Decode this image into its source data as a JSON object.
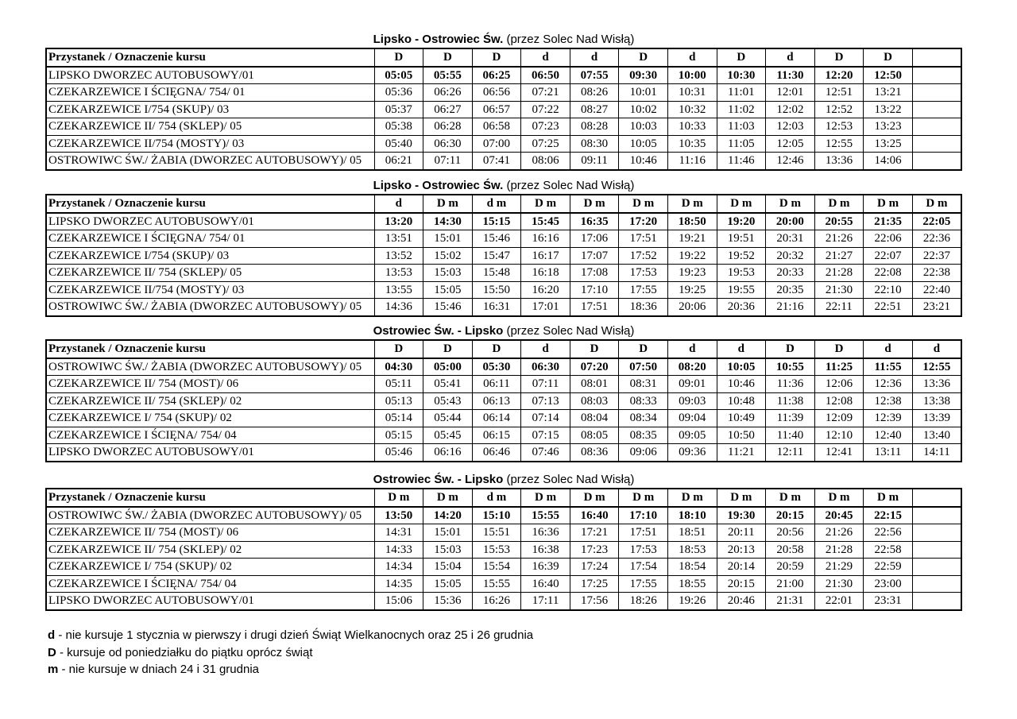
{
  "tables": [
    {
      "title": "Lipsko - Ostrowiec Św.",
      "subtitle": "(przez Solec Nad Wisłą)",
      "header_label": "Przystanek /  Oznaczenie kursu",
      "courses": [
        "D",
        "D",
        "D",
        "d",
        "d",
        "D",
        "d",
        "D",
        "d",
        "D",
        "D"
      ],
      "rows": [
        {
          "stop": "LIPSKO DWORZEC AUTOBUSOWY/01",
          "times": [
            "05:05",
            "05:55",
            "06:25",
            "06:50",
            "07:55",
            "09:30",
            "10:00",
            "10:30",
            "11:30",
            "12:20",
            "12:50"
          ]
        },
        {
          "stop": "CZEKARZEWICE I ŚCIĘGNA/ 754/ 01",
          "times": [
            "05:36",
            "06:26",
            "06:56",
            "07:21",
            "08:26",
            "10:01",
            "10:31",
            "11:01",
            "12:01",
            "12:51",
            "13:21"
          ]
        },
        {
          "stop": "CZEKARZEWICE I/754 (SKUP)/ 03",
          "times": [
            "05:37",
            "06:27",
            "06:57",
            "07:22",
            "08:27",
            "10:02",
            "10:32",
            "11:02",
            "12:02",
            "12:52",
            "13:22"
          ]
        },
        {
          "stop": "CZEKARZEWICE II/ 754 (SKLEP)/ 05",
          "times": [
            "05:38",
            "06:28",
            "06:58",
            "07:23",
            "08:28",
            "10:03",
            "10:33",
            "11:03",
            "12:03",
            "12:53",
            "13:23"
          ]
        },
        {
          "stop": "CZEKARZEWICE II/754 (MOSTY)/ 03",
          "times": [
            "05:40",
            "06:30",
            "07:00",
            "07:25",
            "08:30",
            "10:05",
            "10:35",
            "11:05",
            "12:05",
            "12:55",
            "13:25"
          ]
        },
        {
          "stop": "OSTROWIWC ŚW./ ŻABIA (DWORZEC AUTOBUSOWY)/ 05",
          "times": [
            "06:21",
            "07:11",
            "07:41",
            "08:06",
            "09:11",
            "10:46",
            "11:16",
            "11:46",
            "12:46",
            "13:36",
            "14:06"
          ]
        }
      ]
    },
    {
      "title": "Lipsko - Ostrowiec Św.",
      "subtitle": "(przez Solec Nad Wisłą)",
      "header_label": "Przystanek /  Oznaczenie kursu",
      "courses": [
        "d",
        "D m",
        "d m",
        "D m",
        "D m",
        "D m",
        "D m",
        "D m",
        "D m",
        "D m",
        "D m",
        "D m"
      ],
      "rows": [
        {
          "stop": "LIPSKO DWORZEC AUTOBUSOWY/01",
          "times": [
            "13:20",
            "14:30",
            "15:15",
            "15:45",
            "16:35",
            "17:20",
            "18:50",
            "19:20",
            "20:00",
            "20:55",
            "21:35",
            "22:05"
          ]
        },
        {
          "stop": "CZEKARZEWICE I ŚCIĘGNA/ 754/ 01",
          "times": [
            "13:51",
            "15:01",
            "15:46",
            "16:16",
            "17:06",
            "17:51",
            "19:21",
            "19:51",
            "20:31",
            "21:26",
            "22:06",
            "22:36"
          ]
        },
        {
          "stop": "CZEKARZEWICE I/754 (SKUP)/ 03",
          "times": [
            "13:52",
            "15:02",
            "15:47",
            "16:17",
            "17:07",
            "17:52",
            "19:22",
            "19:52",
            "20:32",
            "21:27",
            "22:07",
            "22:37"
          ]
        },
        {
          "stop": "CZEKARZEWICE II/ 754 (SKLEP)/ 05",
          "times": [
            "13:53",
            "15:03",
            "15:48",
            "16:18",
            "17:08",
            "17:53",
            "19:23",
            "19:53",
            "20:33",
            "21:28",
            "22:08",
            "22:38"
          ]
        },
        {
          "stop": "CZEKARZEWICE II/754 (MOSTY)/ 03",
          "times": [
            "13:55",
            "15:05",
            "15:50",
            "16:20",
            "17:10",
            "17:55",
            "19:25",
            "19:55",
            "20:35",
            "21:30",
            "22:10",
            "22:40"
          ]
        },
        {
          "stop": "OSTROWIWC ŚW./ ŻABIA (DWORZEC AUTOBUSOWY)/ 05",
          "times": [
            "14:36",
            "15:46",
            "16:31",
            "17:01",
            "17:51",
            "18:36",
            "20:06",
            "20:36",
            "21:16",
            "22:11",
            "22:51",
            "23:21"
          ]
        }
      ]
    },
    {
      "title": "Ostrowiec Św. - Lipsko",
      "subtitle": "(przez Solec Nad Wisłą)",
      "header_label": "Przystanek /  Oznaczenie kursu",
      "courses": [
        "D",
        "D",
        "D",
        "d",
        "D",
        "D",
        "d",
        "d",
        "D",
        "D",
        "d",
        "d"
      ],
      "rows": [
        {
          "stop": "OSTROWIWC ŚW./ ŻABIA (DWORZEC AUTOBUSOWY)/ 05",
          "times": [
            "04:30",
            "05:00",
            "05:30",
            "06:30",
            "07:20",
            "07:50",
            "08:20",
            "10:05",
            "10:55",
            "11:25",
            "11:55",
            "12:55"
          ]
        },
        {
          "stop": "CZEKARZEWICE II/ 754 (MOST)/ 06",
          "times": [
            "05:11",
            "05:41",
            "06:11",
            "07:11",
            "08:01",
            "08:31",
            "09:01",
            "10:46",
            "11:36",
            "12:06",
            "12:36",
            "13:36"
          ]
        },
        {
          "stop": "CZEKARZEWICE II/ 754 (SKLEP)/ 02",
          "times": [
            "05:13",
            "05:43",
            "06:13",
            "07:13",
            "08:03",
            "08:33",
            "09:03",
            "10:48",
            "11:38",
            "12:08",
            "12:38",
            "13:38"
          ]
        },
        {
          "stop": "CZEKARZEWICE I/ 754 (SKUP)/ 02",
          "times": [
            "05:14",
            "05:44",
            "06:14",
            "07:14",
            "08:04",
            "08:34",
            "09:04",
            "10:49",
            "11:39",
            "12:09",
            "12:39",
            "13:39"
          ]
        },
        {
          "stop": "CZEKARZEWICE I ŚCIĘNA/ 754/ 04",
          "times": [
            "05:15",
            "05:45",
            "06:15",
            "07:15",
            "08:05",
            "08:35",
            "09:05",
            "10:50",
            "11:40",
            "12:10",
            "12:40",
            "13:40"
          ]
        },
        {
          "stop": "LIPSKO DWORZEC AUTOBUSOWY/01",
          "times": [
            "05:46",
            "06:16",
            "06:46",
            "07:46",
            "08:36",
            "09:06",
            "09:36",
            "11:21",
            "12:11",
            "12:41",
            "13:11",
            "14:11"
          ]
        }
      ]
    },
    {
      "title": "Ostrowiec Św. - Lipsko",
      "subtitle": "(przez Solec Nad Wisłą)",
      "header_label": "Przystanek /  Oznaczenie kursu",
      "courses": [
        "D m",
        "D m",
        "d m",
        "D m",
        "D m",
        "D m",
        "D m",
        "D m",
        "D m",
        "D m",
        "D m"
      ],
      "rows": [
        {
          "stop": "OSTROWIWC ŚW./ ŻABIA (DWORZEC AUTOBUSOWY)/ 05",
          "times": [
            "13:50",
            "14:20",
            "15:10",
            "15:55",
            "16:40",
            "17:10",
            "18:10",
            "19:30",
            "20:15",
            "20:45",
            "22:15"
          ]
        },
        {
          "stop": "CZEKARZEWICE II/ 754 (MOST)/ 06",
          "times": [
            "14:31",
            "15:01",
            "15:51",
            "16:36",
            "17:21",
            "17:51",
            "18:51",
            "20:11",
            "20:56",
            "21:26",
            "22:56"
          ]
        },
        {
          "stop": "CZEKARZEWICE II/ 754 (SKLEP)/ 02",
          "times": [
            "14:33",
            "15:03",
            "15:53",
            "16:38",
            "17:23",
            "17:53",
            "18:53",
            "20:13",
            "20:58",
            "21:28",
            "22:58"
          ]
        },
        {
          "stop": "CZEKARZEWICE I/ 754 (SKUP)/ 02",
          "times": [
            "14:34",
            "15:04",
            "15:54",
            "16:39",
            "17:24",
            "17:54",
            "18:54",
            "20:14",
            "20:59",
            "21:29",
            "22:59"
          ]
        },
        {
          "stop": "CZEKARZEWICE I ŚCIĘNA/ 754/ 04",
          "times": [
            "14:35",
            "15:05",
            "15:55",
            "16:40",
            "17:25",
            "17:55",
            "18:55",
            "20:15",
            "21:00",
            "21:30",
            "23:00"
          ]
        },
        {
          "stop": "LIPSKO DWORZEC AUTOBUSOWY/01",
          "times": [
            "15:06",
            "15:36",
            "16:26",
            "17:11",
            "17:56",
            "18:26",
            "19:26",
            "20:46",
            "21:31",
            "22:01",
            "23:31"
          ]
        }
      ]
    }
  ],
  "footnotes": [
    {
      "key": "d",
      "text": "- nie kursuje 1 stycznia w pierwszy i drugi dzień Świąt Wielkanocnych oraz 25 i 26 grudnia"
    },
    {
      "key": "D",
      "text": "- kursuje od poniedziałku do piątku oprócz świąt"
    },
    {
      "key": "m",
      "text": "- nie kursuje w dniach 24 i 31 grudnia"
    }
  ]
}
